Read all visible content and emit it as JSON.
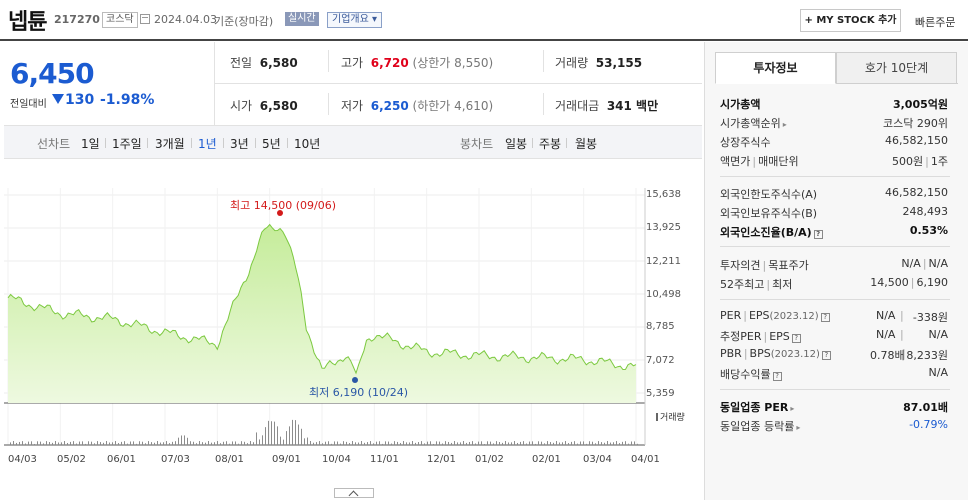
{
  "header": {
    "name": "넵튠",
    "code": "217270",
    "market": "코스닥",
    "date": "2024.04.03",
    "base": "기준(장마감)",
    "realtime": "실시간",
    "company_info": "기업개요 ▾",
    "mystock": "+ MY STOCK 추가",
    "quick_order": "빠른주문"
  },
  "price": {
    "current": "6,450",
    "change_label": "전일대비",
    "change": "130",
    "pct": "-1.98%"
  },
  "quote": {
    "prev_label": "전일",
    "prev": "6,580",
    "high_label": "고가",
    "high": "6,720",
    "upper_label": "(상한가 8,550)",
    "volume_label": "거래량",
    "volume": "53,155",
    "open_label": "시가",
    "open": "6,580",
    "low_label": "저가",
    "low": "6,250",
    "lower_label": "(하한가 4,610)",
    "amount_label": "거래대금",
    "amount": "341 백만"
  },
  "period_bar": {
    "line_label": "선차트",
    "periods": [
      "1일",
      "1주일",
      "3개월",
      "1년",
      "3년",
      "5년",
      "10년"
    ],
    "candle_label": "봉차트",
    "candles": [
      "일봉",
      "주봉",
      "월봉"
    ]
  },
  "chart": {
    "high_label": "최고 14,500 (09/06)",
    "low_label": "최저 6,190 (10/24)",
    "y_ticks": [
      "15,638",
      "13,925",
      "12,211",
      "10,498",
      "8,785",
      "7,072",
      "5,359"
    ],
    "x_ticks": [
      "04/03",
      "05/02",
      "06/01",
      "07/03",
      "08/01",
      "09/01",
      "10/04",
      "11/01",
      "12/01",
      "01/02",
      "02/01",
      "03/04",
      "04/01"
    ],
    "volume_label": "거래량",
    "colors": {
      "line": "#7cc940",
      "fill_top": "#c5ec9a",
      "fill_bottom": "#eef9e0",
      "high": "#d31a1a",
      "low": "#2a57a6"
    }
  },
  "chart_data": {
    "type": "area",
    "title": "",
    "xlabel": "",
    "ylabel": "",
    "ylim": [
      5359,
      15638
    ],
    "x": [
      "04/03",
      "05/02",
      "06/01",
      "07/03",
      "08/01",
      "09/01",
      "10/04",
      "11/01",
      "12/01",
      "01/02",
      "02/01",
      "03/04",
      "04/01"
    ],
    "series": [
      {
        "values": [
          10300,
          9500,
          9200,
          8500,
          7900,
          14300,
          6500,
          8400,
          7500,
          7300,
          7200,
          7100,
          6700
        ]
      }
    ],
    "annotations": {
      "high": 14500,
      "high_date": "09/06",
      "low": 6190,
      "low_date": "10/24"
    },
    "grid": "on"
  },
  "right_panel": {
    "tab_active": "투자정보",
    "tab_other": "호가 10단계",
    "market_cap_label": "시가총액",
    "market_cap": "3,005억원",
    "cap_rank_label": "시가총액순위",
    "cap_rank": "코스닥 290위",
    "shares_label": "상장주식수",
    "shares": "46,582,150",
    "face_label": "액면가",
    "unit_label": "매매단위",
    "face": "500원",
    "unit": "1주",
    "foreign_limit_label": "외국인한도주식수(A)",
    "foreign_limit": "46,582,150",
    "foreign_hold_label": "외국인보유주식수(B)",
    "foreign_hold": "248,493",
    "foreign_ratio_label": "외국인소진율(B/A)",
    "foreign_ratio": "0.53%",
    "opinion_label": "투자의견",
    "target_label": "목표주가",
    "opinion": "N/A",
    "target": "N/A",
    "w52_high_label": "52주최고",
    "w52_low_label": "최저",
    "w52_high": "14,500",
    "w52_low": "6,190",
    "per_label": "PER",
    "eps_label": "EPS",
    "eps_year": "(2023.12)",
    "per": "N/A",
    "eps": "-338원",
    "est_per_label": "추정PER",
    "est_eps_label": "EPS",
    "est_per": "N/A",
    "est_eps": "N/A",
    "pbr_label": "PBR",
    "bps_label": "BPS",
    "bps_year": "(2023.12)",
    "pbr": "0.78배",
    "bps": "8,233원",
    "div_label": "배당수익률",
    "div": "N/A",
    "ind_per_label": "동일업종 PER",
    "ind_per": "87.01배",
    "ind_rate_label": "동일업종 등락률",
    "ind_rate": "-0.79%"
  }
}
